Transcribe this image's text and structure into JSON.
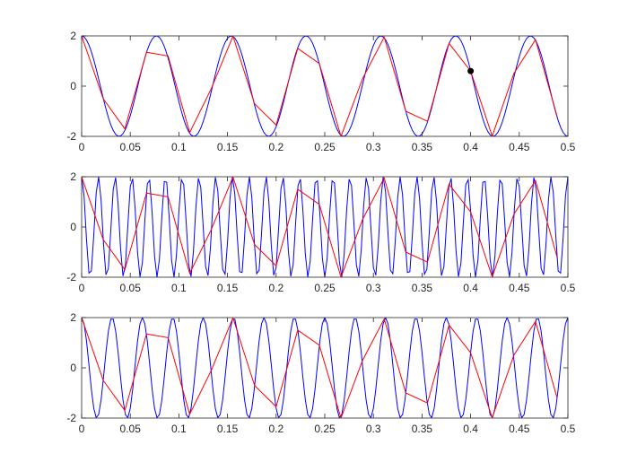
{
  "chart_data": [
    {
      "type": "line",
      "title": "",
      "xlabel": "",
      "ylabel": "",
      "xlim": [
        0,
        0.5
      ],
      "ylim": [
        -2,
        2
      ],
      "xticks": [
        "0",
        "0.05",
        "0.1",
        "0.15",
        "0.2",
        "0.25",
        "0.3",
        "0.35",
        "0.4",
        "0.45",
        "0.5"
      ],
      "yticks": [
        "-2",
        "0",
        "2"
      ],
      "grid": false,
      "series": [
        {
          "style": "line",
          "color": "#0000ff",
          "sample_step": 0.0025,
          "function": "2*cos(2*pi*13*t)"
        },
        {
          "style": "line",
          "color": "#ff0000",
          "x": [
            0,
            0.0222,
            0.0444,
            0.0667,
            0.0889,
            0.1111,
            0.1333,
            0.1556,
            0.1778,
            0.2,
            0.2222,
            0.2444,
            0.2667,
            0.2889,
            0.3111,
            0.3333,
            0.3556,
            0.3778,
            0.4,
            0.4222,
            0.4444,
            0.4667,
            0.4889
          ],
          "values": [
            2,
            -0.5,
            -1.7,
            1.35,
            1.2,
            -1.85,
            -0.1,
            1.99,
            -0.7,
            -1.55,
            1.5,
            0.9,
            -2.0,
            0.3,
            1.95,
            -1.0,
            -1.4,
            1.7,
            0.6,
            -1.99,
            0.5,
            1.85,
            -1.2
          ]
        },
        {
          "style": "marker",
          "color": "#000000",
          "x": [
            0.4
          ],
          "values": [
            0.6
          ]
        }
      ]
    },
    {
      "type": "line",
      "title": "",
      "xlabel": "",
      "ylabel": "",
      "xlim": [
        0,
        0.5
      ],
      "ylim": [
        -2,
        2
      ],
      "xticks": [
        "0",
        "0.05",
        "0.1",
        "0.15",
        "0.2",
        "0.25",
        "0.3",
        "0.35",
        "0.4",
        "0.45",
        "0.5"
      ],
      "yticks": [
        "-2",
        "0",
        "2"
      ],
      "grid": false,
      "series": [
        {
          "style": "line",
          "color": "#0000ff",
          "sample_step": 0.0025,
          "function": "2*cos(2*pi*58*t)"
        },
        {
          "style": "line",
          "color": "#ff0000",
          "x": [
            0,
            0.0222,
            0.0444,
            0.0667,
            0.0889,
            0.1111,
            0.1333,
            0.1556,
            0.1778,
            0.2,
            0.2222,
            0.2444,
            0.2667,
            0.2889,
            0.3111,
            0.3333,
            0.3556,
            0.3778,
            0.4,
            0.4222,
            0.4444,
            0.4667,
            0.4889
          ],
          "values": [
            2,
            -0.5,
            -1.7,
            1.35,
            1.2,
            -1.85,
            -0.1,
            1.99,
            -0.7,
            -1.55,
            1.5,
            0.9,
            -2.0,
            0.3,
            1.95,
            -1.0,
            -1.4,
            1.7,
            0.6,
            -1.99,
            0.5,
            1.85,
            -1.2
          ]
        }
      ]
    },
    {
      "type": "line",
      "title": "",
      "xlabel": "",
      "ylabel": "",
      "xlim": [
        0,
        0.5
      ],
      "ylim": [
        -2,
        2
      ],
      "xticks": [
        "0",
        "0.05",
        "0.1",
        "0.15",
        "0.2",
        "0.25",
        "0.3",
        "0.35",
        "0.4",
        "0.45",
        "0.5"
      ],
      "yticks": [
        "-2",
        "0",
        "2"
      ],
      "grid": false,
      "series": [
        {
          "style": "line",
          "color": "#0000ff",
          "sample_step": 0.0025,
          "function": "2*cos(2*pi*32*t)"
        },
        {
          "style": "line",
          "color": "#ff0000",
          "x": [
            0,
            0.0222,
            0.0444,
            0.0667,
            0.0889,
            0.1111,
            0.1333,
            0.1556,
            0.1778,
            0.2,
            0.2222,
            0.2444,
            0.2667,
            0.2889,
            0.3111,
            0.3333,
            0.3556,
            0.3778,
            0.4,
            0.4222,
            0.4444,
            0.4667,
            0.4889
          ],
          "values": [
            2,
            -0.5,
            -1.7,
            1.35,
            1.2,
            -1.85,
            -0.1,
            1.99,
            -0.7,
            -1.55,
            1.5,
            0.9,
            -2.0,
            0.3,
            1.95,
            -1.0,
            -1.4,
            1.7,
            0.6,
            -1.99,
            0.5,
            1.85,
            -1.2
          ]
        }
      ]
    }
  ]
}
